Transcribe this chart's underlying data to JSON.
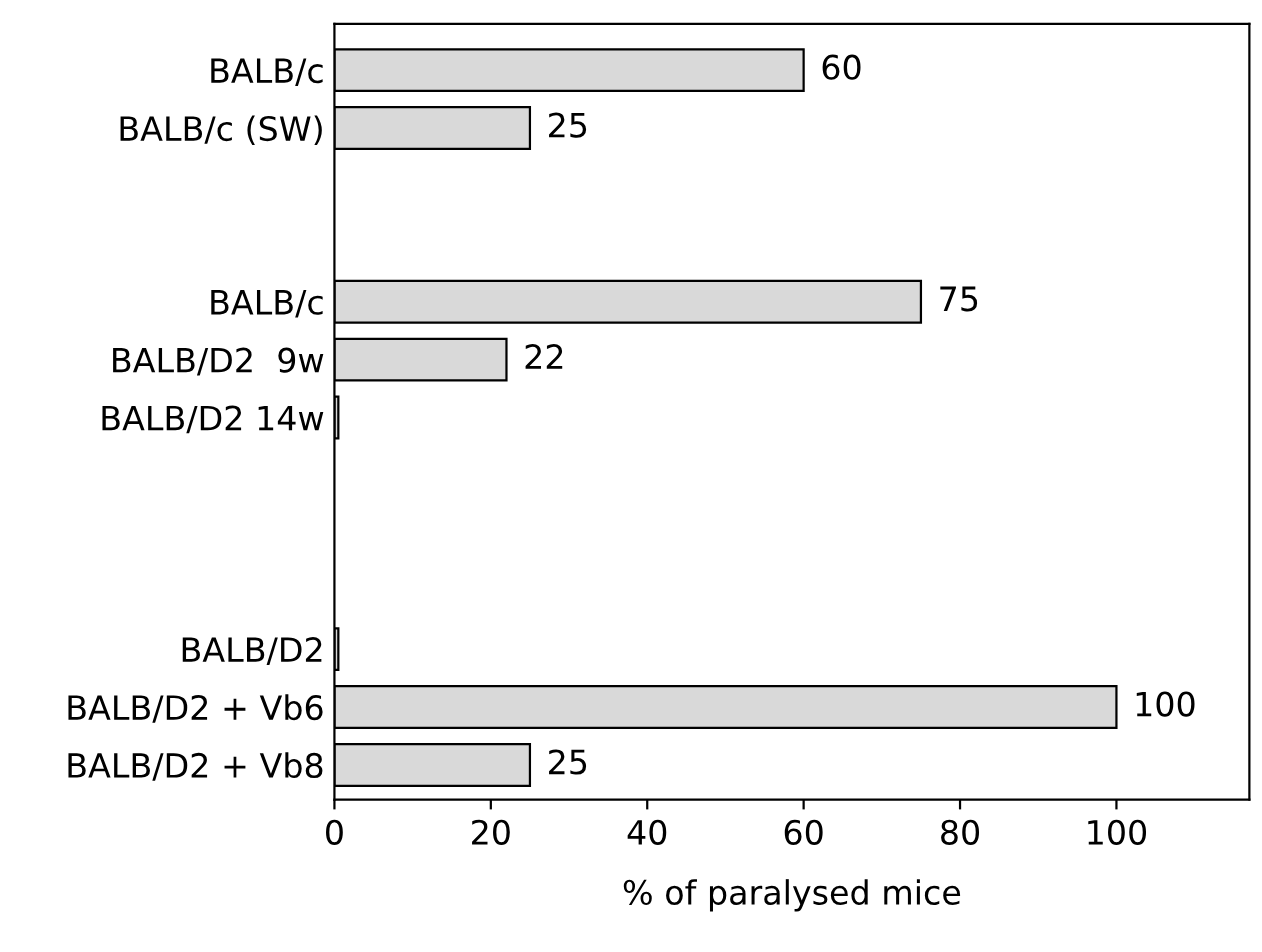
{
  "chart_data": {
    "type": "bar",
    "orientation": "horizontal",
    "xlabel": "% of paralysed mice",
    "categories": [
      "BALB/c",
      "BALB/c (SW)",
      null,
      null,
      "BALB/c",
      "BALB/D2  9w",
      "BALB/D2 14w",
      null,
      null,
      null,
      "BALB/D2",
      "BALB/D2 + Vb6",
      "BALB/D2 + Vb8"
    ],
    "values": [
      60,
      25,
      null,
      null,
      75,
      22,
      0.5,
      null,
      null,
      null,
      0.5,
      100,
      25
    ],
    "value_labels": [
      "60",
      "25",
      null,
      null,
      "75",
      "22",
      null,
      null,
      null,
      null,
      null,
      "100",
      "25"
    ],
    "color": "#d9d9d9",
    "xlim": [
      0,
      117
    ],
    "xticks": [
      0,
      20,
      40,
      60,
      80,
      100
    ],
    "grid": false,
    "legend": false
  }
}
